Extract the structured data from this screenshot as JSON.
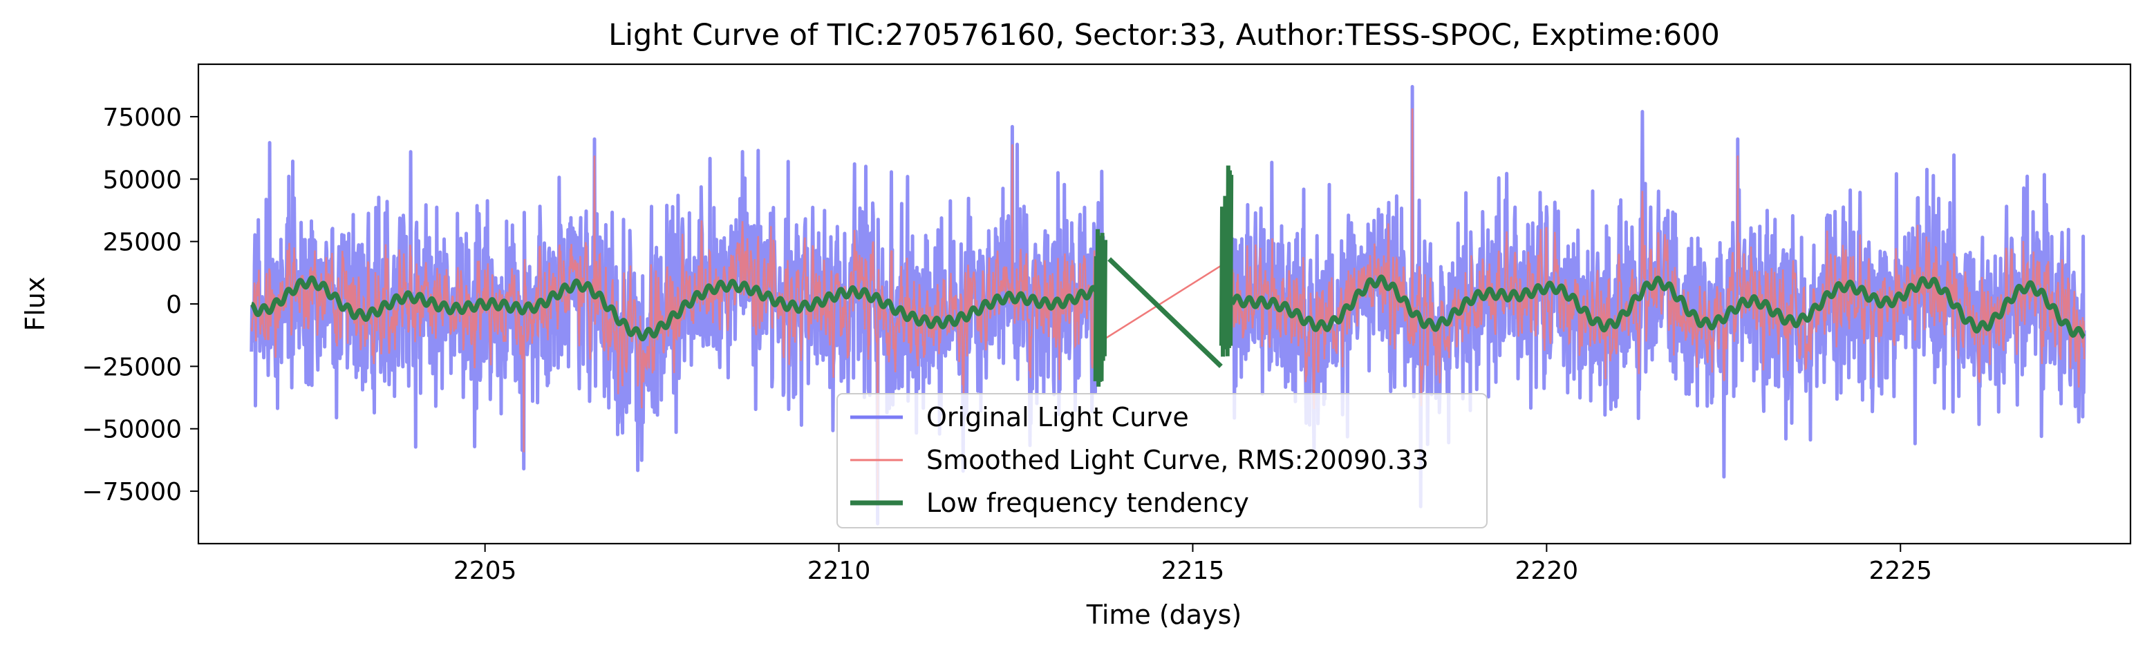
{
  "chart_data": {
    "type": "line",
    "title": "Light Curve of TIC:270576160, Sector:33, Author:TESS-SPOC, Exptime:600",
    "xlabel": "Time (days)",
    "ylabel": "Flux",
    "xlim": [
      2200.95,
      2228.25
    ],
    "ylim": [
      -96000,
      96000
    ],
    "xticks": [
      2205,
      2210,
      2215,
      2220,
      2225
    ],
    "yticks": [
      -75000,
      -50000,
      -25000,
      0,
      25000,
      50000,
      75000
    ],
    "grid": false,
    "legend_position": "lower center",
    "gap": [
      2213.75,
      2215.55
    ],
    "series": [
      {
        "name": "Original Light Curve",
        "color": "#7b7bf5",
        "style": "dense noisy signal",
        "time_range": [
          2201.7,
          2227.6
        ],
        "typical_range": [
          -50000,
          50000
        ],
        "extremes": [
          {
            "x": 2218.1,
            "y": 87000
          },
          {
            "x": 2212.45,
            "y": 71000
          },
          {
            "x": 2206.55,
            "y": 66000
          },
          {
            "x": 2222.7,
            "y": 66000
          },
          {
            "x": 2210.55,
            "y": -88000
          },
          {
            "x": 2205.55,
            "y": -66000
          }
        ]
      },
      {
        "name": "Smoothed Light Curve, RMS:20090.33",
        "color": "#f07a7a",
        "style": "thin dense signal",
        "time_range": [
          2201.7,
          2227.6
        ],
        "gap_bridge": [
          [
            2213.7,
            -15000
          ],
          [
            2215.55,
            18000
          ]
        ]
      },
      {
        "name": "Low frequency tendency",
        "color": "#2e7d46",
        "style": "slow wiggle around zero",
        "time_range": [
          2201.7,
          2227.6
        ],
        "typical_range": [
          -12000,
          14000
        ],
        "gap_segment": [
          [
            2213.82,
            18000
          ],
          [
            2215.4,
            -25000
          ]
        ],
        "edge_spikes": [
          {
            "x": 2213.7,
            "min": -35000,
            "max": 32000
          },
          {
            "x": 2215.48,
            "min": -25000,
            "max": 56000
          }
        ]
      }
    ]
  }
}
